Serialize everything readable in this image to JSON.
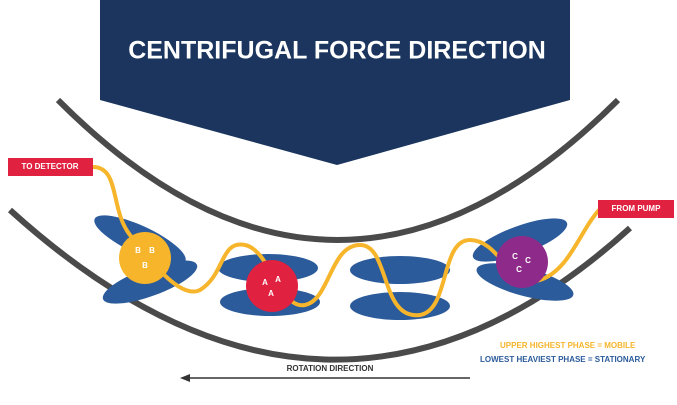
{
  "title": "CENTRIFUGAL FORCE DIRECTION",
  "labels": {
    "to_detector": "TO DETECTOR",
    "from_pump": "FROM PUMP"
  },
  "legend": {
    "mobile": "UPPER  HIGHEST PHASE = MOBILE",
    "stationary": "LOWEST HEAVIEST PHASE = STATIONARY"
  },
  "rotation": "ROTATION DIRECTION",
  "circles": [
    {
      "letters": [
        "B",
        "B",
        "B"
      ]
    },
    {
      "letters": [
        "A",
        "A",
        "A"
      ]
    },
    {
      "letters": [
        "C",
        "C",
        "C"
      ]
    }
  ]
}
